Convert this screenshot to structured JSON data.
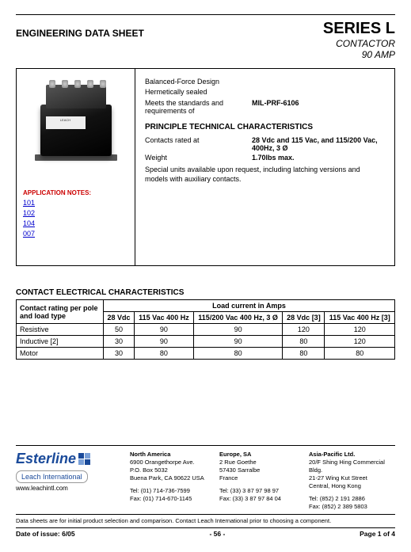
{
  "header": {
    "sheet_title": "ENGINEERING DATA SHEET",
    "series": "SERIES L",
    "type": "CONTACTOR",
    "rating": "90 AMP"
  },
  "app_notes": {
    "heading": "APPLICATION NOTES:",
    "links": [
      "101",
      "102",
      "104",
      "007"
    ]
  },
  "desc": {
    "line1": "Balanced-Force Design",
    "line2": "Hermetically sealed",
    "std_label": "Meets the standards and requirements of",
    "std_val": "MIL-PRF-6106",
    "section_h": "PRINCIPLE TECHNICAL CHARACTERISTICS",
    "contacts_label": "Contacts rated at",
    "contacts_val": "28 Vdc and 115 Vac, and 115/200 Vac, 400Hz, 3 Ø",
    "weight_label": "Weight",
    "weight_val": "1.70lbs max.",
    "note": "Special units available upon request, including latching versions and models with auxiliary contacts."
  },
  "table": {
    "heading": "CONTACT ELECTRICAL CHARACTERISTICS",
    "rowhead": "Contact rating per pole and load type",
    "load_h": "Load current in Amps",
    "cols": [
      "28 Vdc",
      "115 Vac\n400 Hz",
      "115/200 Vac\n400 Hz, 3 Ø",
      "28 Vdc [3]",
      "115 Vac\n400 Hz [3]"
    ],
    "rows": [
      {
        "label": "Resistive",
        "vals": [
          "50",
          "90",
          "90",
          "120",
          "120"
        ]
      },
      {
        "label": "Inductive [2]",
        "vals": [
          "30",
          "90",
          "90",
          "80",
          "120"
        ]
      },
      {
        "label": "Motor",
        "vals": [
          "30",
          "80",
          "80",
          "80",
          "80"
        ]
      }
    ]
  },
  "footer": {
    "logo": "Esterline",
    "sublogo": "Leach International",
    "web": "www.leachintl.com",
    "regions": [
      {
        "h": "North America",
        "l1": "6900 Orangethorpe Ave.",
        "l2": "P.O. Box 5032",
        "l3": "Buena Park, CA 90622 USA",
        "tel": "Tel: (01) 714-736-7599",
        "fax": "Fax: (01) 714-670-1145"
      },
      {
        "h": "Europe, SA",
        "l1": "2 Rue Goethe",
        "l2": "57430 Sarralbe",
        "l3": "France",
        "tel": "Tel: (33) 3 87 97 98 97",
        "fax": "Fax: (33) 3 87 97 84 04"
      },
      {
        "h": "Asia-Pacific Ltd.",
        "l1": "20/F Shing Hing Commercial Bldg.",
        "l2": "21-27 Wing Kut Street",
        "l3": "Central, Hong Kong",
        "tel": "Tel: (852) 2 191 2886",
        "fax": "Fax: (852) 2 389 5803"
      }
    ],
    "disclaimer": "Data sheets are for initial product selection and comparison. Contact Leach International prior to choosing a component.",
    "issue": "Date of issue: 6/05",
    "page_no": "- 56 -",
    "page": "Page 1 of 4"
  }
}
